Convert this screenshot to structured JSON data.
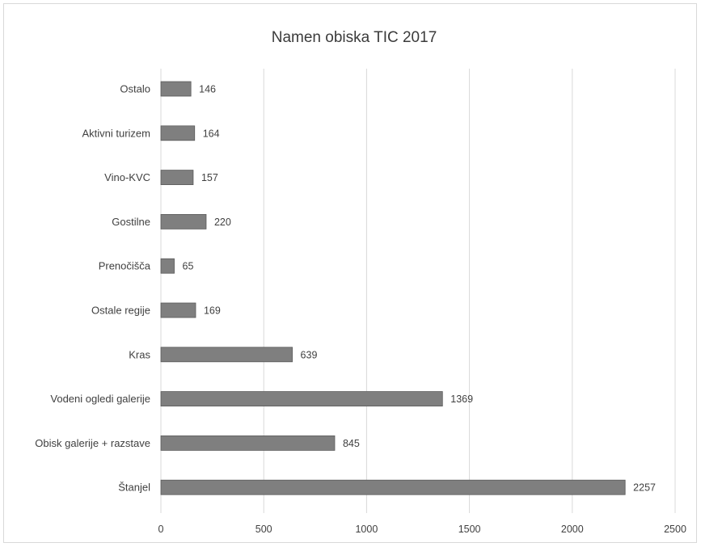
{
  "chart_data": {
    "type": "bar",
    "orientation": "horizontal",
    "title": "Namen obiska TIC 2017",
    "categories": [
      "Ostalo",
      "Aktivni turizem",
      "Vino-KVC",
      "Gostilne",
      "Prenočišča",
      "Ostale regije",
      "Kras",
      "Vodeni ogledi galerije",
      "Obisk galerije + razstave",
      "Štanjel"
    ],
    "values": [
      146,
      164,
      157,
      220,
      65,
      169,
      639,
      1369,
      845,
      2257
    ],
    "data_labels": [
      "146",
      "164",
      "157",
      "220",
      "65",
      "169",
      "639",
      "1369",
      "845",
      "2257"
    ],
    "xlim": [
      0,
      2500
    ],
    "x_ticks": [
      0,
      500,
      1000,
      1500,
      2000,
      2500
    ],
    "x_tick_labels": [
      "0",
      "500",
      "1000",
      "1500",
      "2000",
      "2500"
    ],
    "grid": true,
    "bar_color": "#7f7f7f",
    "legend": "none"
  }
}
